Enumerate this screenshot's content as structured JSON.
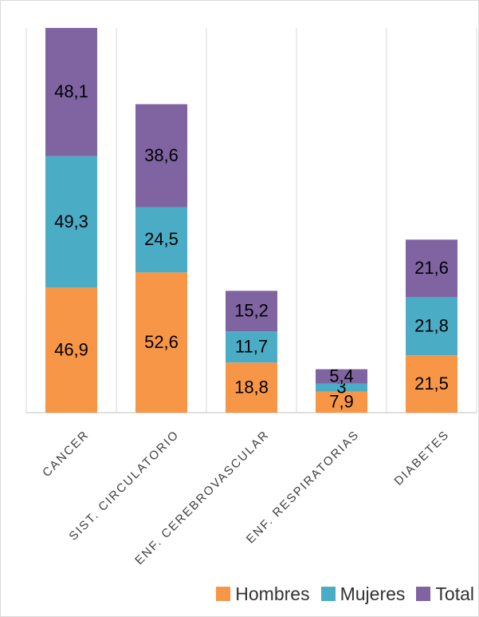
{
  "chart_data": {
    "type": "bar",
    "stacked": true,
    "categories": [
      "CANCER",
      "SIST. CIRCULATORIO",
      "ENF. CEREBROVASCULAR",
      "ENF. RESPIRATORIAS",
      "DIABETES"
    ],
    "series": [
      {
        "name": "Hombres",
        "color": "#f79646",
        "values": [
          46.9,
          52.6,
          18.8,
          7.9,
          21.5
        ],
        "labels": [
          "46,9",
          "52,6",
          "18,8",
          "7,9",
          "21,5"
        ]
      },
      {
        "name": "Mujeres",
        "color": "#4bacc6",
        "values": [
          49.3,
          24.5,
          11.7,
          3,
          21.8
        ],
        "labels": [
          "49,3",
          "24,5",
          "11,7",
          "3",
          "21,8"
        ]
      },
      {
        "name": "Total",
        "color": "#8064a2",
        "values": [
          48.1,
          38.6,
          15.2,
          5.4,
          21.6
        ],
        "labels": [
          "48,1",
          "38,6",
          "15,2",
          "5,4",
          "21,6"
        ]
      }
    ],
    "ylim": [
      0,
      144.3
    ],
    "grid": {
      "vertical": true
    },
    "legend": {
      "position": "bottom-right"
    },
    "title": "",
    "xlabel": "",
    "ylabel": ""
  }
}
